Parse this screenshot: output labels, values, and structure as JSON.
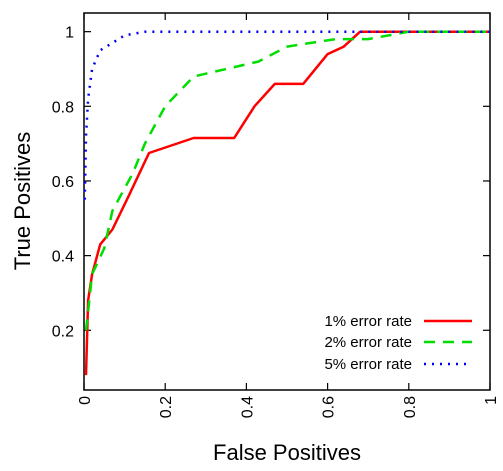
{
  "chart_data": {
    "type": "line",
    "title": "",
    "xlabel": "False Positives",
    "ylabel": "True Positives",
    "xlim": [
      0,
      1
    ],
    "ylim": [
      0.04,
      1.05
    ],
    "x_ticks": [
      0,
      0.2,
      0.4,
      0.6,
      0.8,
      1
    ],
    "x_tick_labels": [
      "0",
      "0.2",
      "0.4",
      "0.6",
      "0.8",
      "1"
    ],
    "y_ticks": [
      0.2,
      0.4,
      0.6,
      0.8,
      1
    ],
    "y_tick_labels": [
      "0.2",
      "0.4",
      "0.6",
      "0.8",
      "1"
    ],
    "grid": false,
    "legend_position": "bottom-right",
    "series": [
      {
        "name": "1% error rate",
        "color": "#ff0000",
        "style": "solid",
        "x": [
          0.005,
          0.01,
          0.02,
          0.04,
          0.07,
          0.11,
          0.16,
          0.27,
          0.37,
          0.42,
          0.47,
          0.54,
          0.6,
          0.64,
          0.68,
          1.0
        ],
        "y": [
          0.08,
          0.28,
          0.35,
          0.43,
          0.47,
          0.56,
          0.675,
          0.715,
          0.715,
          0.8,
          0.86,
          0.86,
          0.94,
          0.96,
          1.0,
          1.0
        ]
      },
      {
        "name": "2% error rate",
        "color": "#00dd00",
        "style": "dashed",
        "x": [
          0.005,
          0.01,
          0.02,
          0.05,
          0.07,
          0.12,
          0.15,
          0.2,
          0.27,
          0.43,
          0.5,
          0.62,
          0.7,
          0.8,
          1.0
        ],
        "y": [
          0.2,
          0.25,
          0.35,
          0.42,
          0.52,
          0.62,
          0.7,
          0.8,
          0.88,
          0.92,
          0.96,
          0.98,
          0.98,
          1.0,
          1.0
        ]
      },
      {
        "name": "5% error rate",
        "color": "#0000ee",
        "style": "dotted",
        "x": [
          0.002,
          0.005,
          0.01,
          0.02,
          0.04,
          0.07,
          0.1,
          0.15,
          1.0
        ],
        "y": [
          0.55,
          0.72,
          0.82,
          0.9,
          0.95,
          0.97,
          0.99,
          1.0,
          1.0
        ]
      }
    ]
  }
}
